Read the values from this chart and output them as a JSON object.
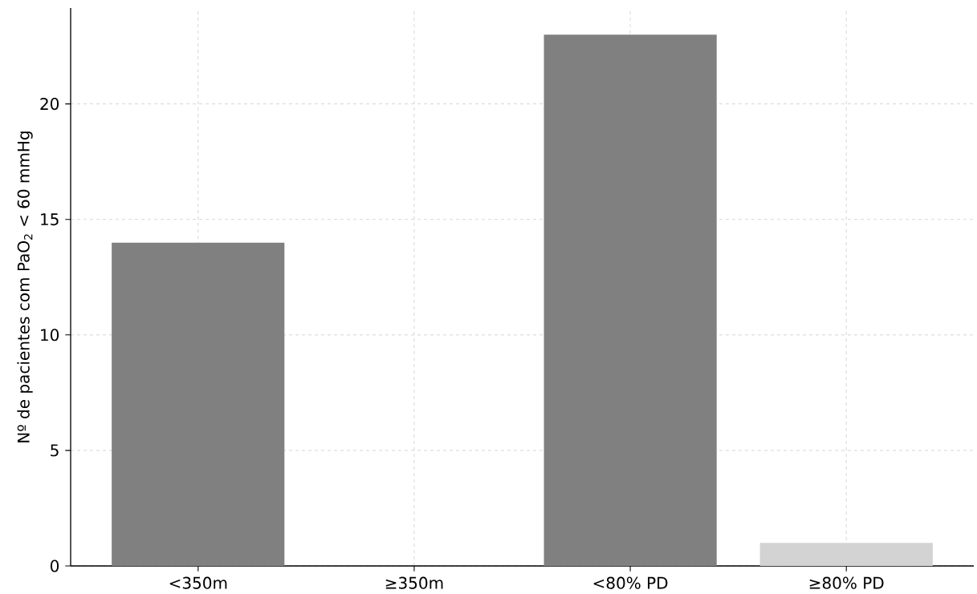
{
  "chart_data": {
    "type": "bar",
    "ylabel": "Nº de pacientes com PaO$_{2}$ < 60 mmHg",
    "categories": [
      "<350m",
      "≥350m",
      "<80% PD",
      "≥80% PD"
    ],
    "values": [
      14,
      0,
      23,
      1
    ],
    "colors": [
      "#808080",
      "#808080",
      "#808080",
      "#d3d3d3"
    ],
    "ylim": [
      0,
      24.15
    ],
    "yticks": [
      0,
      5,
      10,
      15,
      20
    ],
    "grid": true
  }
}
